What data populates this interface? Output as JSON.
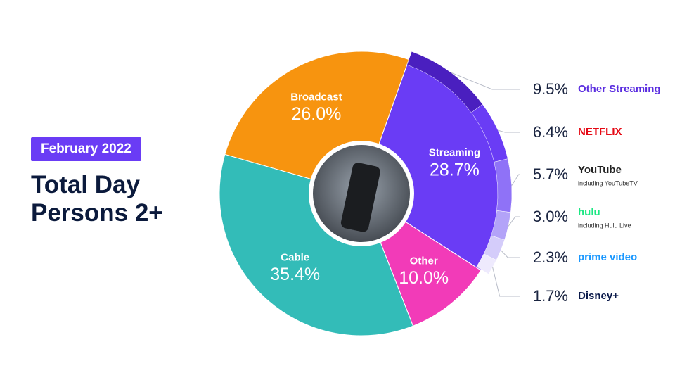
{
  "chart_data": {
    "type": "donut",
    "badge": "February 2022",
    "title": "Total Day Persons 2+",
    "categories": [
      "Streaming",
      "Other",
      "Cable",
      "Broadcast"
    ],
    "values": [
      28.7,
      10.0,
      35.4,
      26.0
    ],
    "value_labels": [
      "28.7%",
      "10.0%",
      "35.4%",
      "26.0%"
    ],
    "colors": [
      "#6a3cf5",
      "#f23bb8",
      "#33bcb8",
      "#f7940f"
    ],
    "breakdown": {
      "categories": [
        "Other Streaming",
        "NETFLIX",
        "YouTube",
        "hulu",
        "prime video",
        "Disney+"
      ],
      "notes": [
        null,
        null,
        "including YouTubeTV",
        "including Hulu Live",
        null,
        null
      ],
      "values": [
        9.5,
        6.4,
        5.7,
        3.0,
        2.3,
        1.7
      ],
      "value_labels": [
        "9.5%",
        "6.4%",
        "5.7%",
        "3.0%",
        "2.3%",
        "1.7%"
      ],
      "colors": [
        "#4a1fbf",
        "#6a3cf5",
        "#8f72f7",
        "#b3a3f8",
        "#d4ccfa",
        "#eeeafd"
      ],
      "label_colors": [
        "#5a2de0",
        "#e50914",
        "#222222",
        "#1ce783",
        "#1a98ff",
        "#0b1a4a"
      ]
    }
  }
}
